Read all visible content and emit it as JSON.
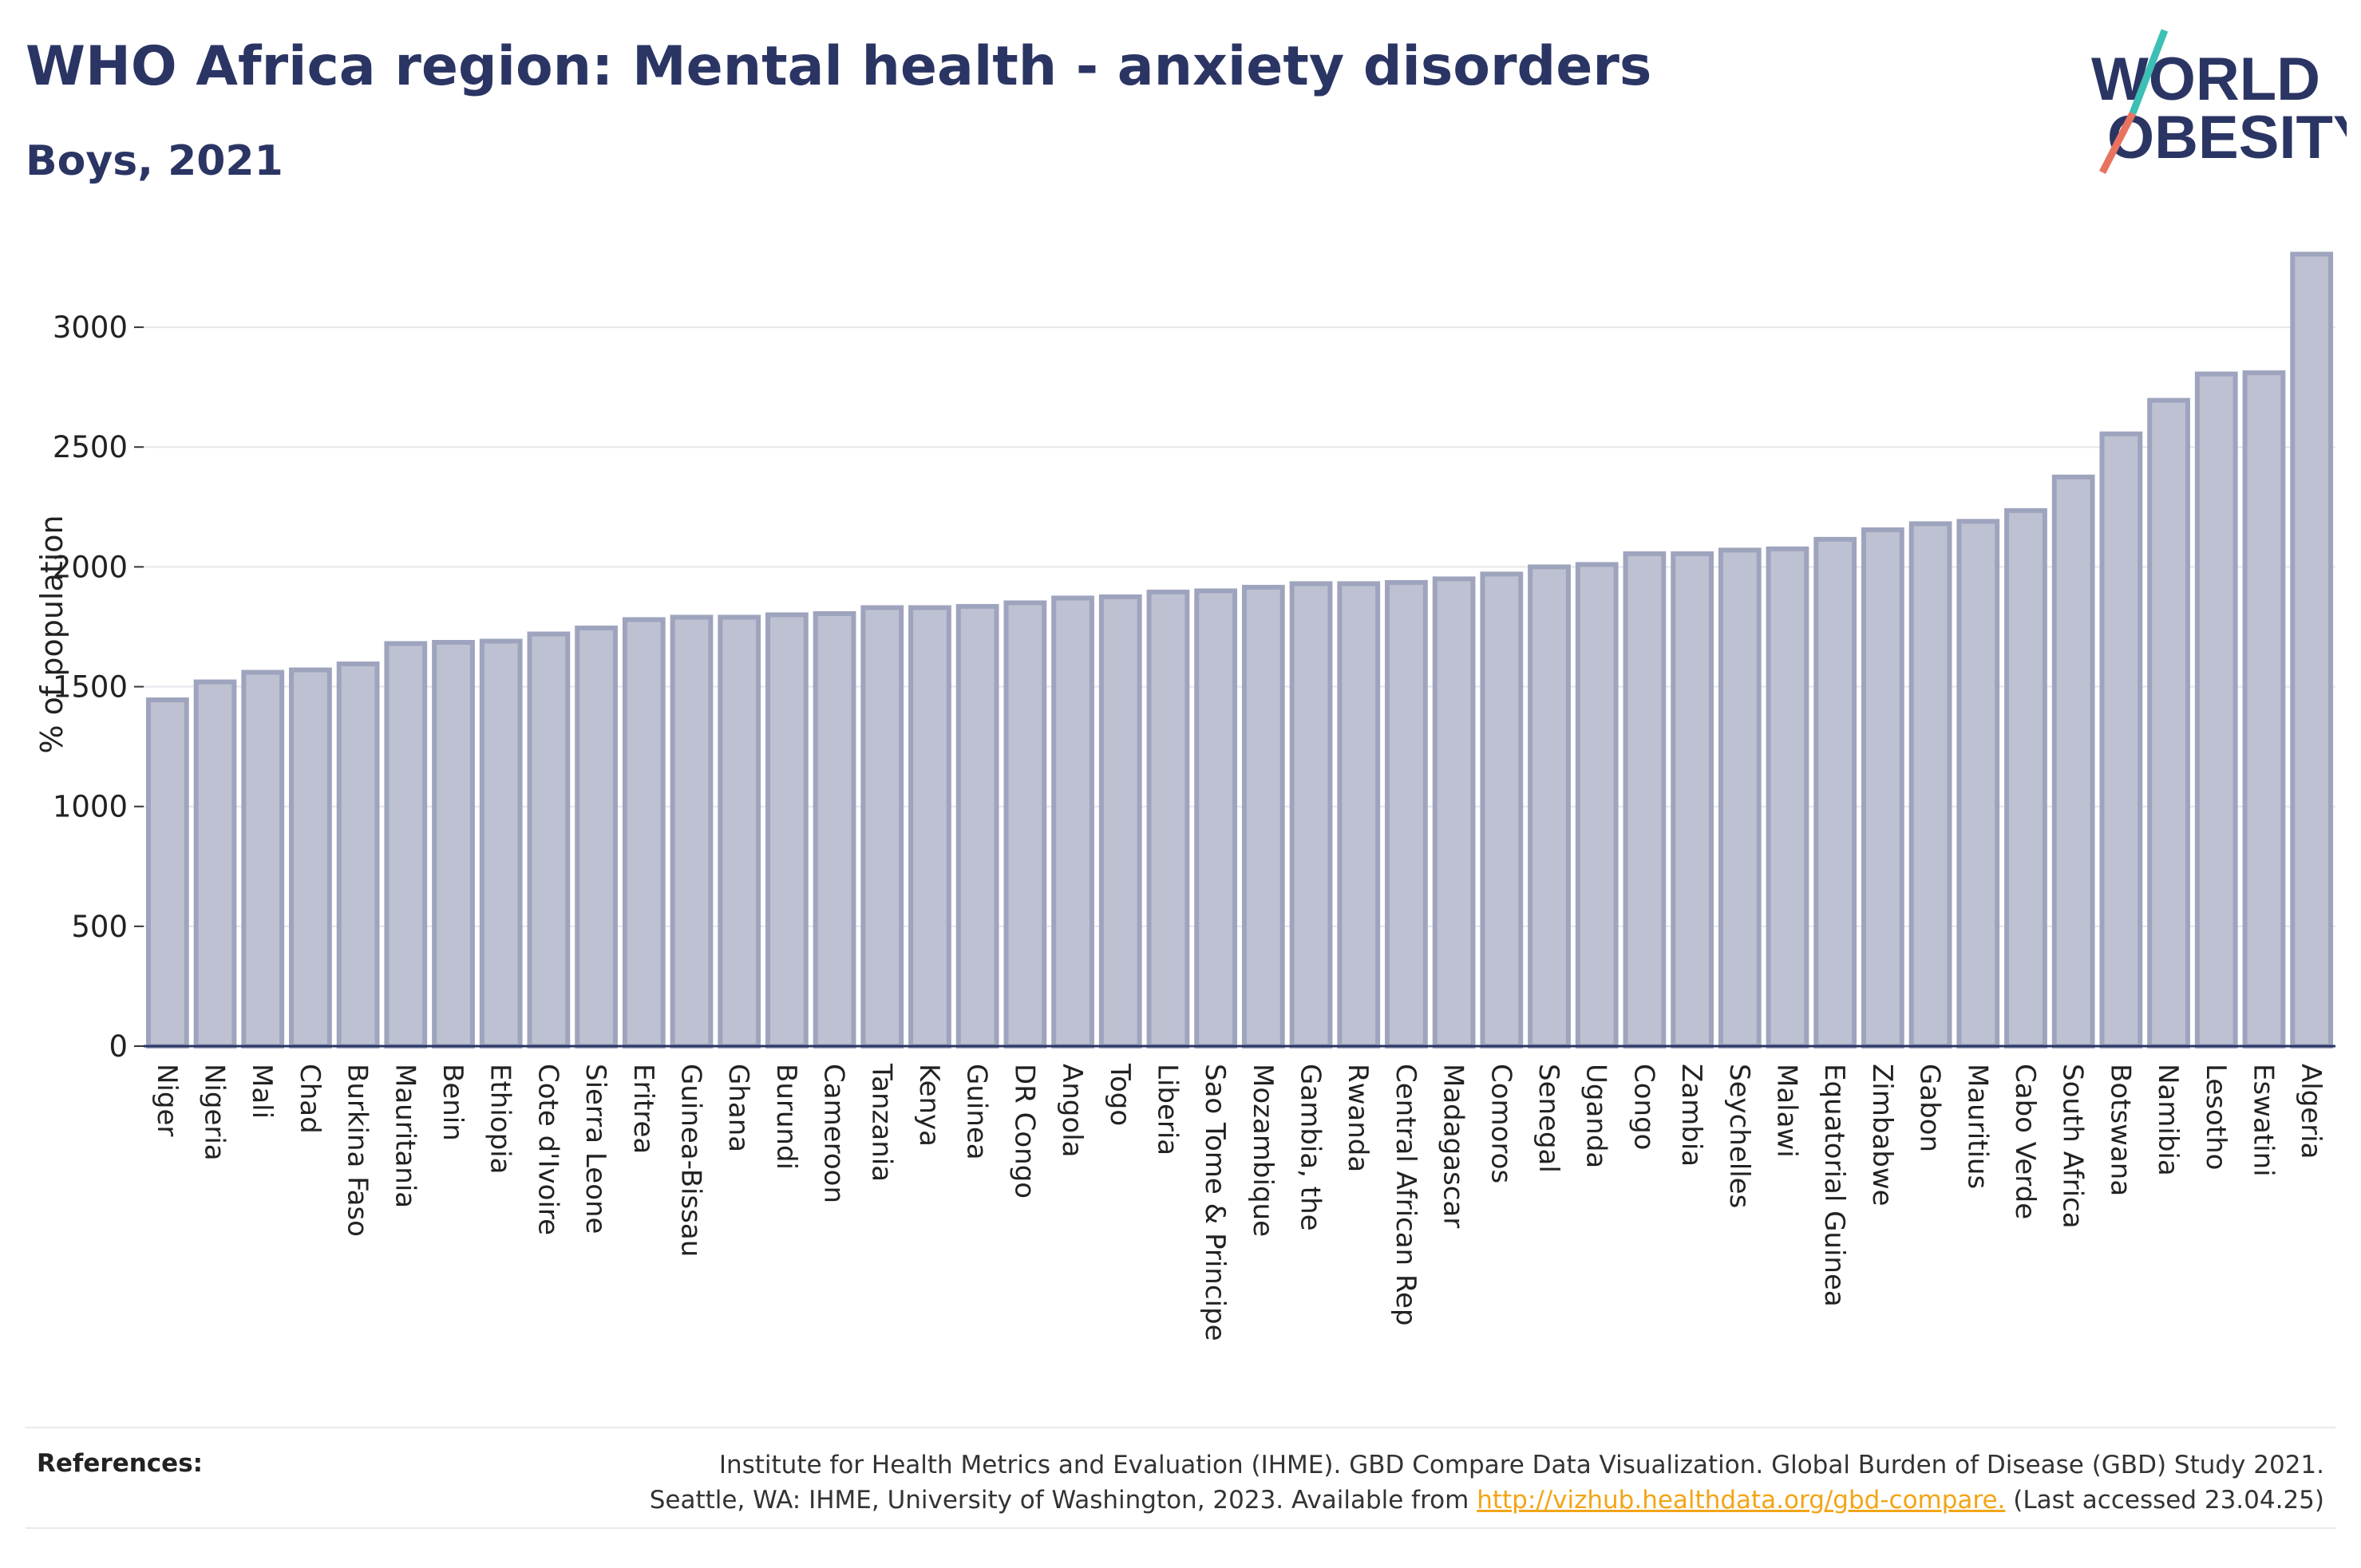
{
  "header": {
    "title": "WHO Africa region: Mental health - anxiety disorders",
    "subtitle": "Boys, 2021"
  },
  "logo": {
    "line1": "WORLD",
    "line2": "OBESITY",
    "colors": {
      "text": "#2b3564",
      "slash_top": "#3cbfb4",
      "slash_bottom": "#e8735f"
    }
  },
  "chart_data": {
    "type": "bar",
    "ylabel": "% of population",
    "xlabel": "",
    "ylim": [
      0,
      3300
    ],
    "yticks": [
      0,
      500,
      1000,
      1500,
      2000,
      2500,
      3000
    ],
    "grid": true,
    "bar_color": "#bdc1d1",
    "bar_edge_color": "#9ea4bd",
    "categories": [
      "Niger",
      "Nigeria",
      "Mali",
      "Chad",
      "Burkina Faso",
      "Mauritania",
      "Benin",
      "Ethiopia",
      "Cote d'Ivoire",
      "Sierra Leone",
      "Eritrea",
      "Guinea-Bissau",
      "Ghana",
      "Burundi",
      "Cameroon",
      "Tanzania",
      "Kenya",
      "Guinea",
      "DR Congo",
      "Angola",
      "Togo",
      "Liberia",
      "Sao Tome & Principe",
      "Mozambique",
      "Gambia, the",
      "Rwanda",
      "Central African Rep",
      "Madagascar",
      "Comoros",
      "Senegal",
      "Uganda",
      "Congo",
      "Zambia",
      "Seychelles",
      "Malawi",
      "Equatorial Guinea",
      "Zimbabwe",
      "Gabon",
      "Mauritius",
      "Cabo Verde",
      "South Africa",
      "Botswana",
      "Namibia",
      "Lesotho",
      "Eswatini",
      "Algeria"
    ],
    "values": [
      1445,
      1520,
      1560,
      1570,
      1595,
      1680,
      1685,
      1690,
      1720,
      1745,
      1780,
      1790,
      1790,
      1800,
      1805,
      1830,
      1830,
      1835,
      1850,
      1870,
      1875,
      1895,
      1900,
      1915,
      1930,
      1930,
      1935,
      1950,
      1970,
      2000,
      2010,
      2055,
      2055,
      2070,
      2075,
      2115,
      2155,
      2180,
      2190,
      2235,
      2375,
      2555,
      2695,
      2805,
      2810,
      3305
    ]
  },
  "references": {
    "label": "References:",
    "line1": "Institute for Health Metrics and Evaluation (IHME). GBD Compare Data Visualization. Global Burden of Disease (GBD) Study 2021.",
    "line2_prefix": "Seattle, WA: IHME, University of Washington, 2023. Available from ",
    "link": "http://vizhub.healthdata.org/gbd-compare.",
    "line2_suffix": " (Last accessed 23.04.25)"
  }
}
